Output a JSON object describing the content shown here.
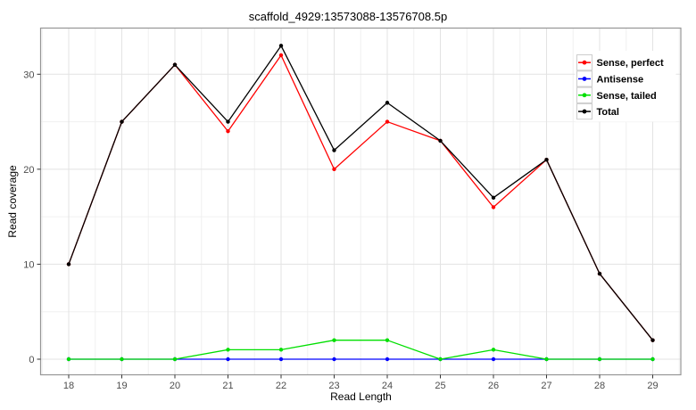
{
  "chart_data": {
    "type": "line",
    "title": "scaffold_4929:13573088-13576708.5p",
    "xlabel": "Read Length",
    "ylabel": "Read coverage",
    "x": [
      18,
      19,
      20,
      21,
      22,
      23,
      24,
      25,
      26,
      27,
      28,
      29
    ],
    "x_ticks": [
      "18",
      "19",
      "20",
      "21",
      "22",
      "23",
      "24",
      "25",
      "26",
      "27",
      "28",
      "29"
    ],
    "y_ticks": [
      "0",
      "10",
      "20",
      "30"
    ],
    "y_tick_values": [
      0,
      10,
      20,
      30
    ],
    "ylim": [
      -1.65,
      34.65
    ],
    "grid": {
      "major": true,
      "minor": true,
      "major_color": "#e3e3e3",
      "minor_color": "#f0f0f0"
    },
    "panel": {
      "background": "#ffffff",
      "border_color": "#969696"
    },
    "marker": "filled-circle",
    "legend_position": "top-right-inside",
    "series": [
      {
        "name": "Sense, perfect",
        "color": "#ff0000",
        "values": [
          10,
          25,
          31,
          24,
          32,
          20,
          25,
          23,
          16,
          21,
          9,
          2
        ]
      },
      {
        "name": "Antisense",
        "color": "#0000ff",
        "values": [
          0,
          0,
          0,
          0,
          0,
          0,
          0,
          0,
          0,
          0,
          0,
          0
        ]
      },
      {
        "name": "Sense, tailed",
        "color": "#00df00",
        "values": [
          0,
          0,
          0,
          1,
          1,
          2,
          2,
          0,
          1,
          0,
          0,
          0
        ]
      },
      {
        "name": "Total",
        "color": "#000000",
        "values": [
          10,
          25,
          31,
          25,
          33,
          22,
          27,
          23,
          17,
          21,
          9,
          2
        ]
      }
    ]
  }
}
